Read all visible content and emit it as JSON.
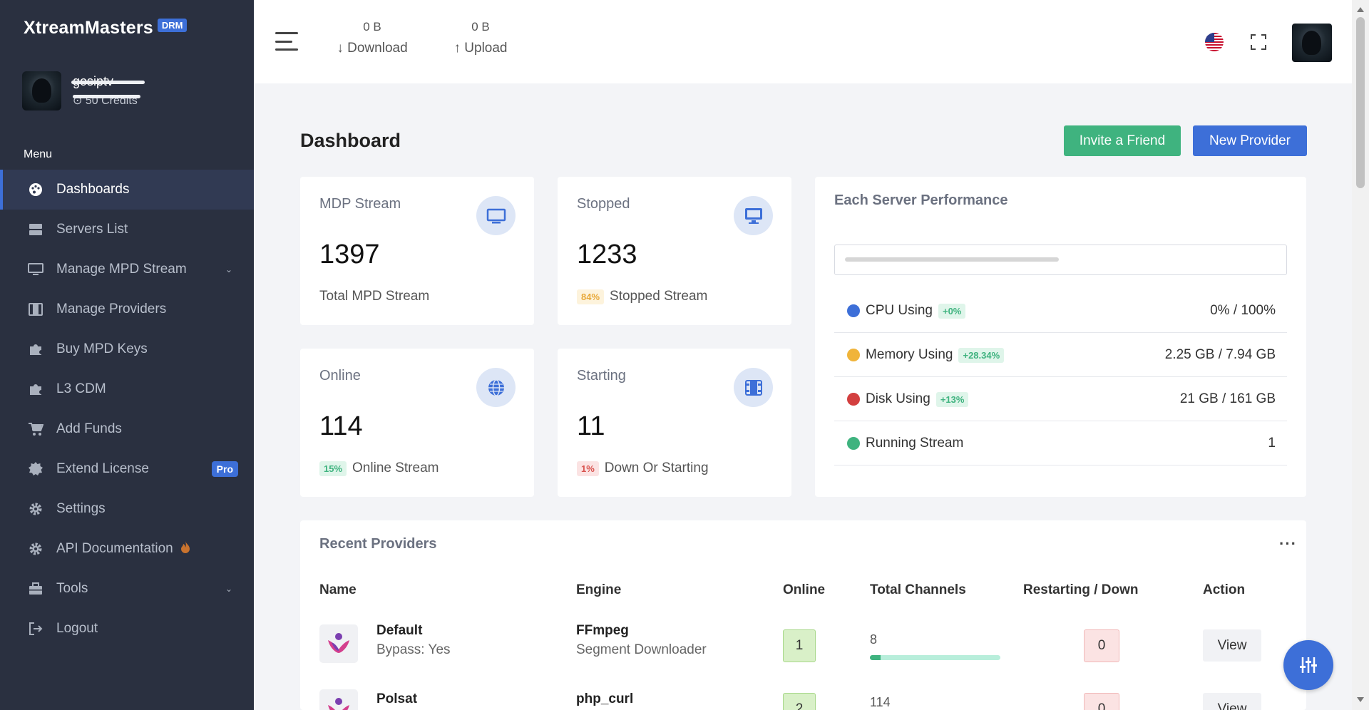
{
  "brand": {
    "name": "XtreamMasters",
    "badge": "DRM"
  },
  "user": {
    "name": "gosiptv",
    "credits": "50 Credits"
  },
  "sidebar": {
    "menu_title": "Menu",
    "items": [
      {
        "label": "Dashboards",
        "icon": "palette-icon",
        "active": true
      },
      {
        "label": "Servers List",
        "icon": "server-icon"
      },
      {
        "label": "Manage MPD Stream",
        "icon": "monitor-icon",
        "caret": true
      },
      {
        "label": "Manage Providers",
        "icon": "film-icon"
      },
      {
        "label": "Buy MPD Keys",
        "icon": "puzzle-icon"
      },
      {
        "label": "L3 CDM",
        "icon": "puzzle-icon"
      },
      {
        "label": "Add Funds",
        "icon": "cart-icon"
      },
      {
        "label": "Extend License",
        "icon": "badge-icon",
        "badge": "Pro"
      },
      {
        "label": "Settings",
        "icon": "gear-icon"
      },
      {
        "label": "API Documentation",
        "icon": "gear-icon",
        "extra": "fire-icon"
      },
      {
        "label": "Tools",
        "icon": "toolbox-icon",
        "caret": true
      },
      {
        "label": "Logout",
        "icon": "logout-icon"
      }
    ]
  },
  "topbar": {
    "download": {
      "value": "0 B",
      "label": "Download"
    },
    "upload": {
      "value": "0 B",
      "label": "Upload"
    }
  },
  "page": {
    "title": "Dashboard",
    "invite_label": "Invite a Friend",
    "new_provider_label": "New Provider"
  },
  "stats": {
    "mdp": {
      "label": "MDP Stream",
      "value": "1397",
      "sub": "Total MPD Stream"
    },
    "stopped": {
      "label": "Stopped",
      "value": "1233",
      "pct": "84%",
      "sub": "Stopped Stream"
    },
    "online": {
      "label": "Online",
      "value": "114",
      "pct": "15%",
      "sub": "Online Stream"
    },
    "starting": {
      "label": "Starting",
      "value": "11",
      "pct": "1%",
      "sub": "Down Or Starting"
    }
  },
  "performance": {
    "title": "Each Server Performance",
    "rows": [
      {
        "label": "CPU Using",
        "tag": "+0%",
        "value": "0% / 100%",
        "color": "#3d6fd8"
      },
      {
        "label": "Memory Using",
        "tag": "+28.34%",
        "value": "2.25 GB / 7.94 GB",
        "color": "#f0b43a"
      },
      {
        "label": "Disk Using",
        "tag": "+13%",
        "value": "21 GB / 161 GB",
        "color": "#d33f3f"
      },
      {
        "label": "Running Stream",
        "value": "1",
        "color": "#3fb37f"
      }
    ]
  },
  "providers": {
    "title": "Recent Providers",
    "columns": [
      "Name",
      "Engine",
      "Online",
      "Total Channels",
      "Restarting / Down",
      "Action"
    ],
    "rows": [
      {
        "name": "Default",
        "sub": "Bypass: Yes",
        "engine": "FFmpeg",
        "engine_sub": "Segment Downloader",
        "online": "1",
        "channels": "8",
        "channels_progress": 0.08,
        "down": "0",
        "action": "View"
      },
      {
        "name": "Polsat",
        "engine": "php_curl",
        "online": "2",
        "channels": "114",
        "down": "0",
        "action": "View"
      }
    ]
  }
}
